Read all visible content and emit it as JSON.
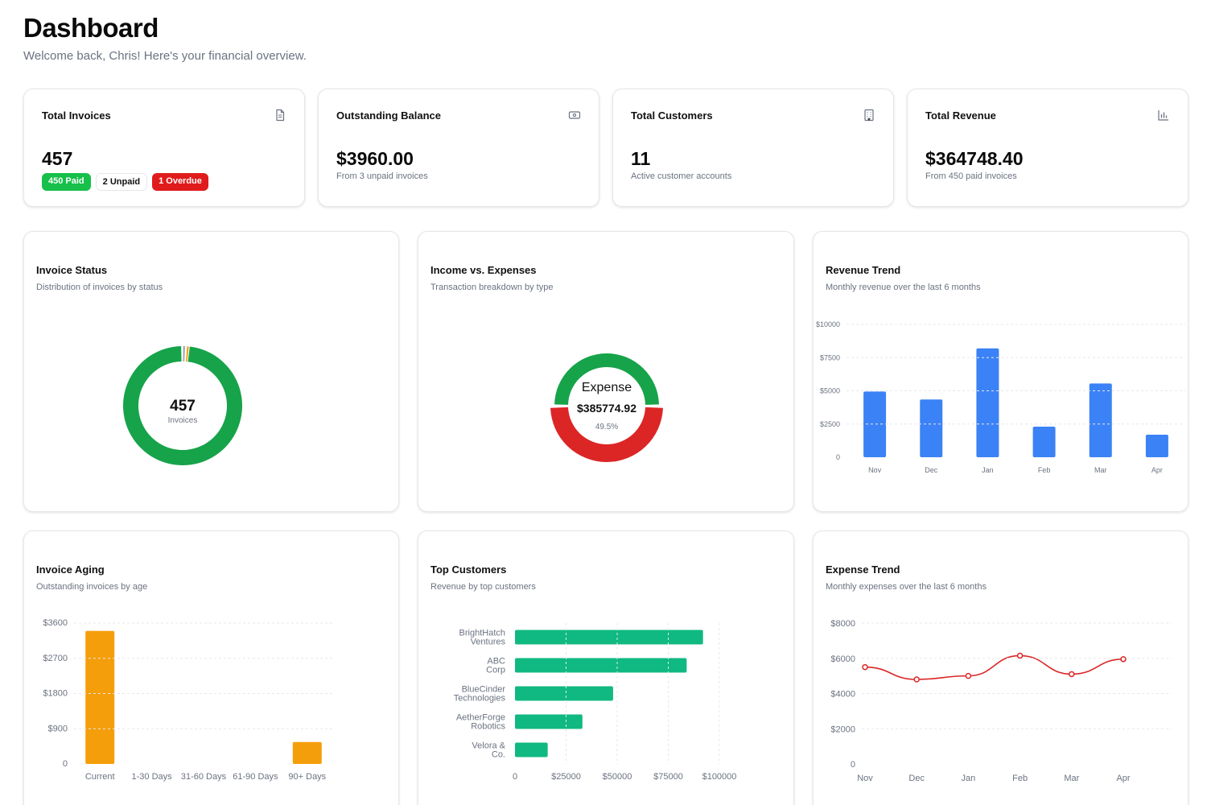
{
  "header": {
    "title": "Dashboard",
    "subtitle": "Welcome back, Chris! Here's your financial overview."
  },
  "stats": [
    {
      "title": "Total Invoices",
      "icon": "document-icon",
      "value": "457",
      "badges": [
        {
          "label": "450 Paid",
          "tone": "green"
        },
        {
          "label": "2 Unpaid",
          "tone": "outline"
        },
        {
          "label": "1 Overdue",
          "tone": "red"
        }
      ]
    },
    {
      "title": "Outstanding Balance",
      "icon": "banknote-icon",
      "value": "$3960.00",
      "sub": "From 3 unpaid invoices"
    },
    {
      "title": "Total Customers",
      "icon": "building-icon",
      "value": "11",
      "sub": "Active customer accounts"
    },
    {
      "title": "Total Revenue",
      "icon": "bar-chart-icon",
      "value": "$364748.40",
      "sub": "From 450 paid invoices"
    }
  ],
  "colors": {
    "paid": "#16a34a",
    "unpaid": "#9ca3af",
    "overdue": "#f59e0b",
    "income": "#16a34a",
    "expense": "#dc2626",
    "revenue_bar": "#3b82f6",
    "aging_bar": "#f59e0b",
    "customer_bar": "#10b981",
    "expense_line": "#dc2626"
  },
  "invoice_status": {
    "title": "Invoice Status",
    "subtitle": "Distribution of invoices by status",
    "center_value": "457",
    "center_label": "Invoices"
  },
  "income_expenses": {
    "title": "Income vs. Expenses",
    "subtitle": "Transaction breakdown by type",
    "center_label": "Expense",
    "center_value": "$385774.92",
    "center_percent": "49.5%"
  },
  "revenue_trend": {
    "title": "Revenue Trend",
    "subtitle": "Monthly revenue over the last 6 months",
    "y_ticks": [
      "0",
      "$2500",
      "$5000",
      "$7500",
      "$10000"
    ]
  },
  "invoice_aging": {
    "title": "Invoice Aging",
    "subtitle": "Outstanding invoices by age",
    "y_ticks": [
      "0",
      "$900",
      "$1800",
      "$2700",
      "$3600"
    ]
  },
  "top_customers": {
    "title": "Top Customers",
    "subtitle": "Revenue by top customers",
    "x_ticks": [
      "0",
      "$25000",
      "$50000",
      "$75000",
      "$100000"
    ]
  },
  "expense_trend": {
    "title": "Expense Trend",
    "subtitle": "Monthly expenses over the last 6 months",
    "y_ticks": [
      "0",
      "$2000",
      "$4000",
      "$6000",
      "$8000"
    ]
  },
  "chart_data": [
    {
      "type": "pie",
      "categories": [
        "Paid",
        "Unpaid",
        "Overdue"
      ],
      "values": [
        450,
        2,
        1
      ],
      "donut": true
    },
    {
      "type": "pie",
      "categories": [
        "Income",
        "Expense"
      ],
      "values": [
        50.5,
        49.5
      ],
      "donut": true
    },
    {
      "type": "bar",
      "categories": [
        "Nov",
        "Dec",
        "Jan",
        "Feb",
        "Mar",
        "Apr"
      ],
      "values": [
        4950,
        4350,
        8200,
        2300,
        5550,
        1700
      ],
      "ylim": [
        0,
        10000
      ],
      "grid": true
    },
    {
      "type": "bar",
      "categories": [
        "Current",
        "1-30 Days",
        "31-60 Days",
        "61-90 Days",
        "90+ Days"
      ],
      "values": [
        3400,
        0,
        0,
        0,
        560
      ],
      "ylim": [
        0,
        3600
      ],
      "grid": true
    },
    {
      "type": "bar",
      "orientation": "horizontal",
      "categories": [
        "BrightHatch Ventures",
        "ABC Corp",
        "BlueCinder Technologies",
        "AetherForge Robotics",
        "Velora & Co."
      ],
      "values": [
        92000,
        84000,
        48000,
        33000,
        16000
      ],
      "xlim": [
        0,
        100000
      ],
      "grid": true
    },
    {
      "type": "line",
      "categories": [
        "Nov",
        "Dec",
        "Jan",
        "Feb",
        "Mar",
        "Apr"
      ],
      "values": [
        5500,
        4800,
        5000,
        6150,
        5100,
        5950
      ],
      "ylim": [
        0,
        8000
      ],
      "grid": true
    }
  ]
}
